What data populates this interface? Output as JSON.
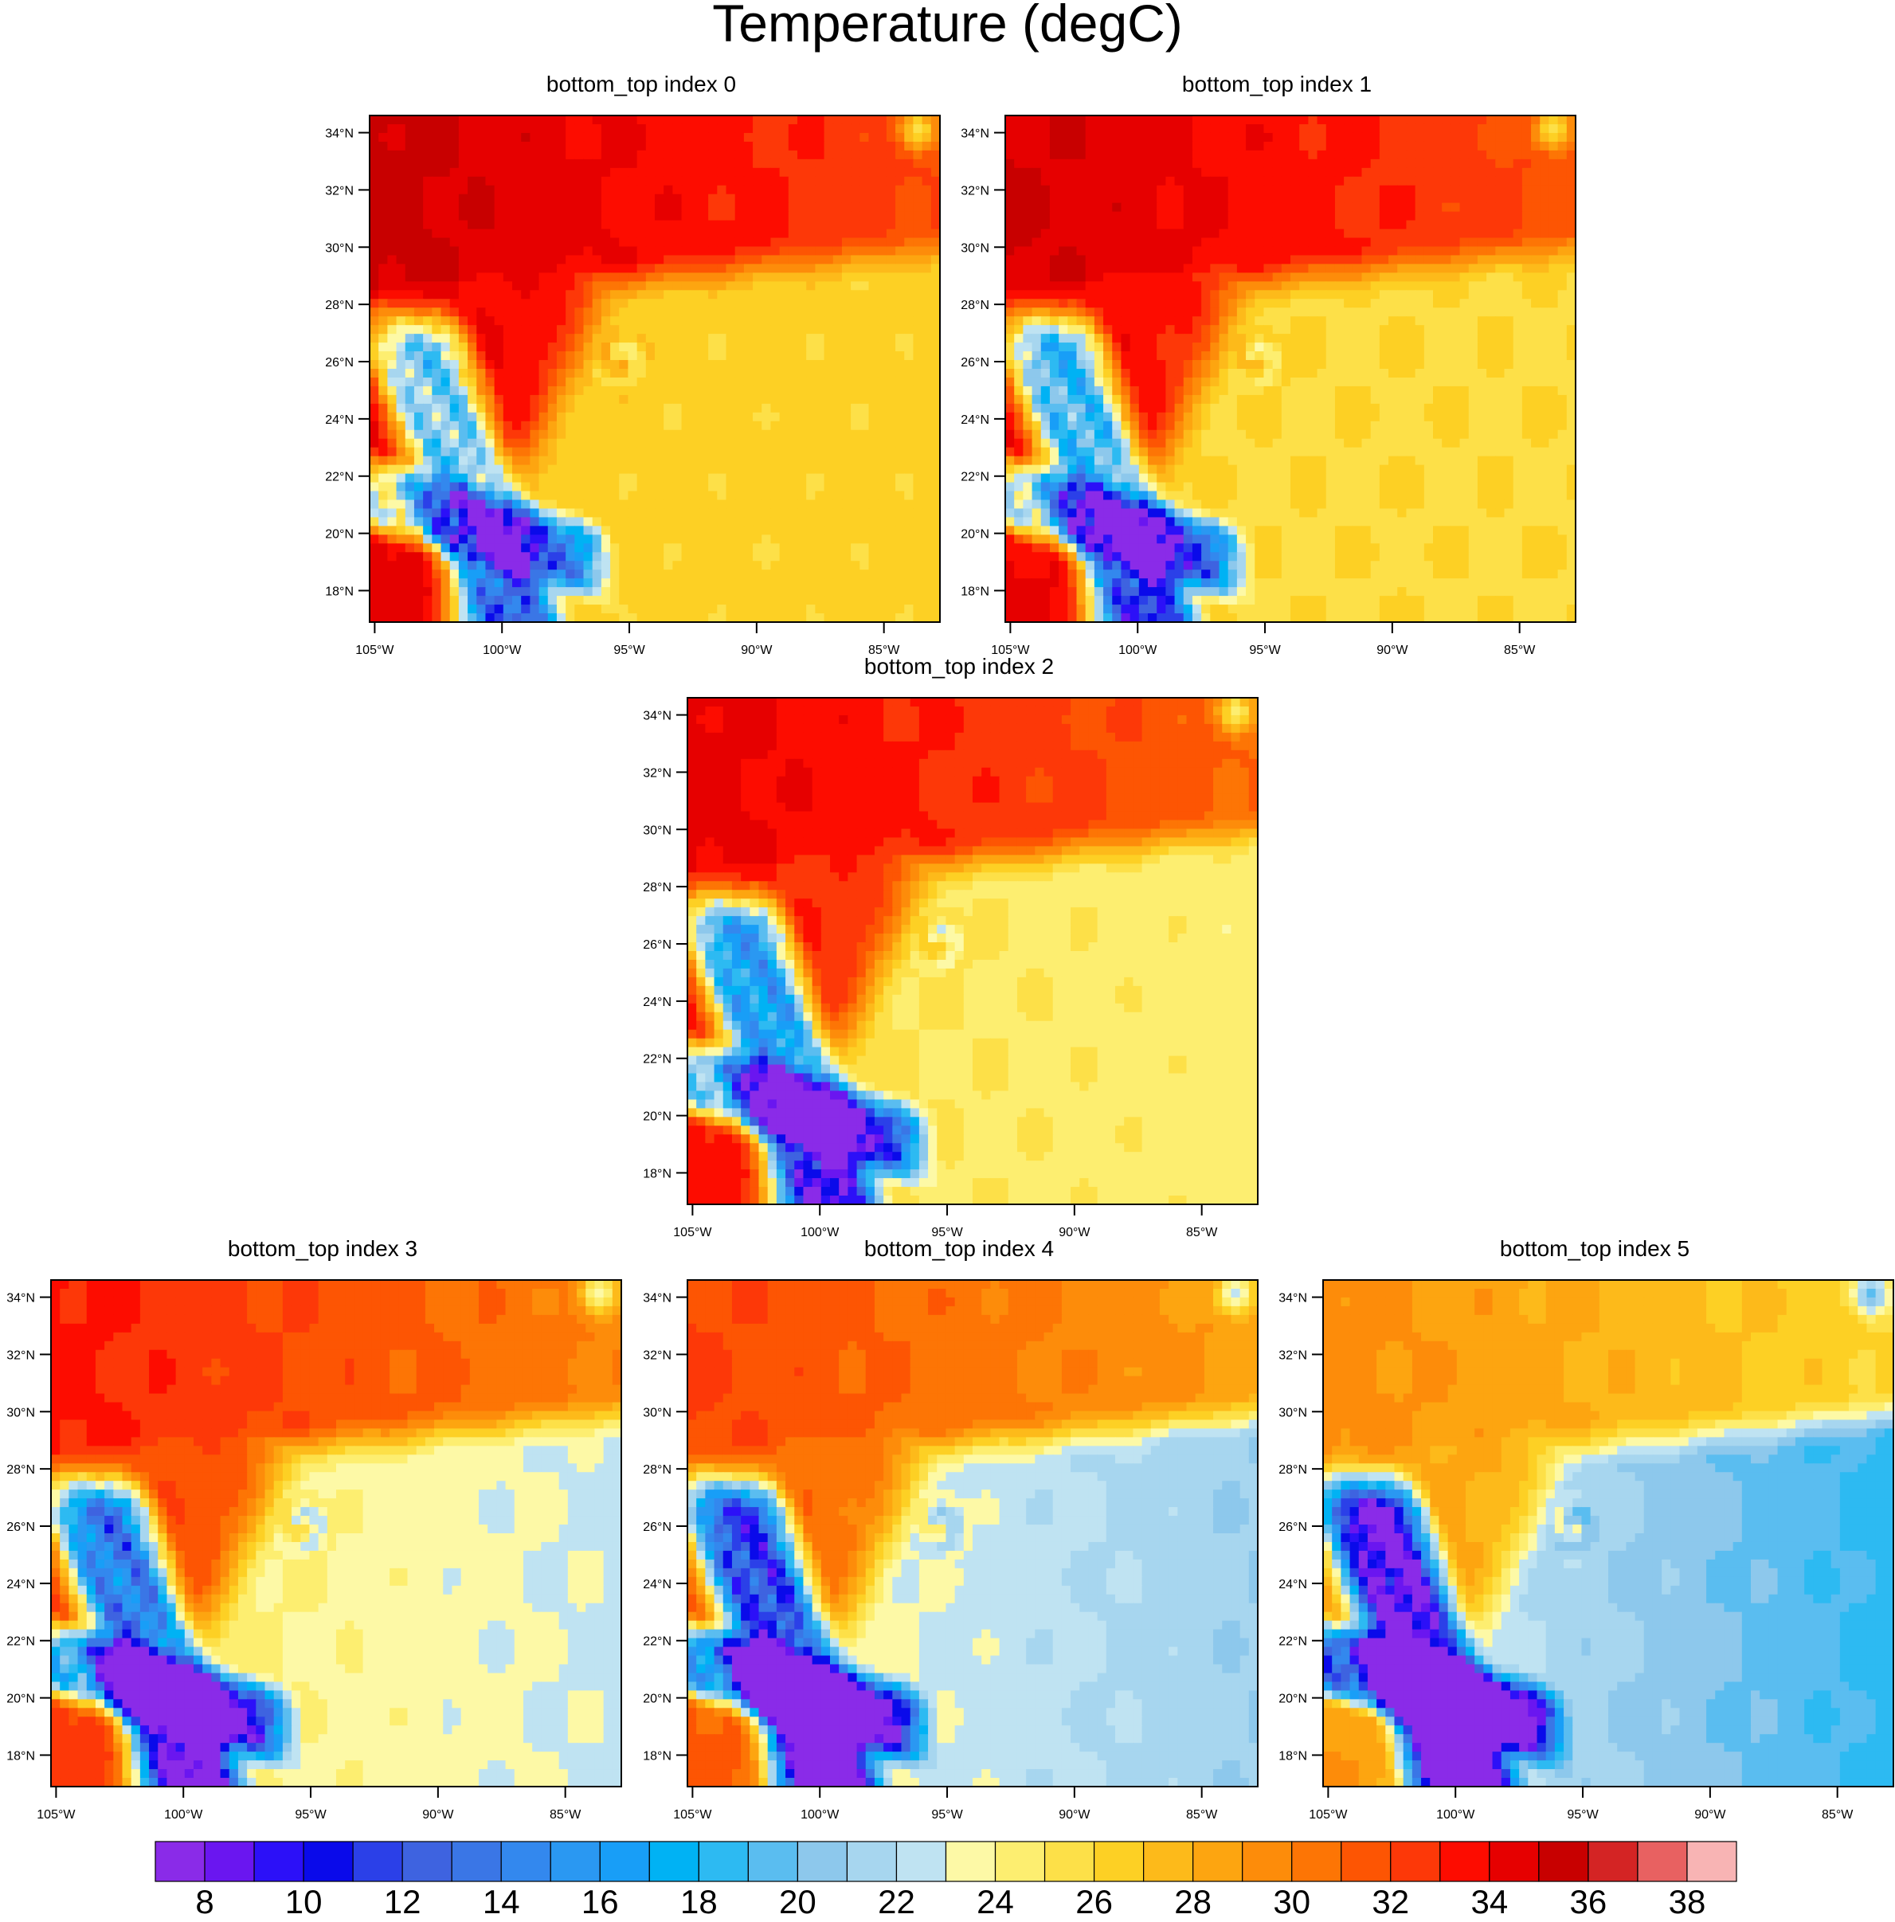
{
  "title": "Temperature (degC)",
  "chart_data": [
    {
      "type": "heatmap",
      "title": "bottom_top index 0",
      "variable": "Temperature",
      "units": "degC",
      "level_index": 0,
      "xlabel": "",
      "ylabel": "",
      "x_ticks": [
        "105°W",
        "100°W",
        "95°W",
        "90°W",
        "85°W"
      ],
      "y_ticks": [
        "18°N",
        "20°N",
        "22°N",
        "24°N",
        "26°N",
        "28°N",
        "30°N",
        "32°N",
        "34°N"
      ],
      "xlim": [
        -105.2,
        -82.8
      ],
      "ylim": [
        16.9,
        34.6
      ],
      "value_range": [
        10,
        36
      ]
    },
    {
      "type": "heatmap",
      "title": "bottom_top index 1",
      "variable": "Temperature",
      "units": "degC",
      "level_index": 1,
      "xlabel": "",
      "ylabel": "",
      "x_ticks": [
        "105°W",
        "100°W",
        "95°W",
        "90°W",
        "85°W"
      ],
      "y_ticks": [
        "18°N",
        "20°N",
        "22°N",
        "24°N",
        "26°N",
        "28°N",
        "30°N",
        "32°N",
        "34°N"
      ],
      "xlim": [
        -105.2,
        -82.8
      ],
      "ylim": [
        16.9,
        34.6
      ],
      "value_range": [
        10,
        36
      ]
    },
    {
      "type": "heatmap",
      "title": "bottom_top index 2",
      "variable": "Temperature",
      "units": "degC",
      "level_index": 2,
      "xlabel": "",
      "ylabel": "",
      "x_ticks": [
        "105°W",
        "100°W",
        "95°W",
        "90°W",
        "85°W"
      ],
      "y_ticks": [
        "18°N",
        "20°N",
        "22°N",
        "24°N",
        "26°N",
        "28°N",
        "30°N",
        "32°N",
        "34°N"
      ],
      "xlim": [
        -105.2,
        -82.8
      ],
      "ylim": [
        16.9,
        34.6
      ],
      "value_range": [
        10,
        35
      ]
    },
    {
      "type": "heatmap",
      "title": "bottom_top index 3",
      "variable": "Temperature",
      "units": "degC",
      "level_index": 3,
      "xlabel": "",
      "ylabel": "",
      "x_ticks": [
        "105°W",
        "100°W",
        "95°W",
        "90°W",
        "85°W"
      ],
      "y_ticks": [
        "18°N",
        "20°N",
        "22°N",
        "24°N",
        "26°N",
        "28°N",
        "30°N",
        "32°N",
        "34°N"
      ],
      "xlim": [
        -105.2,
        -82.8
      ],
      "ylim": [
        16.9,
        34.6
      ],
      "value_range": [
        10,
        34
      ]
    },
    {
      "type": "heatmap",
      "title": "bottom_top index 4",
      "variable": "Temperature",
      "units": "degC",
      "level_index": 4,
      "xlabel": "",
      "ylabel": "",
      "x_ticks": [
        "105°W",
        "100°W",
        "95°W",
        "90°W",
        "85°W"
      ],
      "y_ticks": [
        "18°N",
        "20°N",
        "22°N",
        "24°N",
        "26°N",
        "28°N",
        "30°N",
        "32°N",
        "34°N"
      ],
      "xlim": [
        -105.2,
        -82.8
      ],
      "ylim": [
        16.9,
        34.6
      ],
      "value_range": [
        10,
        33
      ]
    },
    {
      "type": "heatmap",
      "title": "bottom_top index 5",
      "variable": "Temperature",
      "units": "degC",
      "level_index": 5,
      "xlabel": "",
      "ylabel": "",
      "x_ticks": [
        "105°W",
        "100°W",
        "95°W",
        "90°W",
        "85°W"
      ],
      "y_ticks": [
        "18°N",
        "20°N",
        "22°N",
        "24°N",
        "26°N",
        "28°N",
        "30°N",
        "32°N",
        "34°N"
      ],
      "xlim": [
        -105.2,
        -82.8
      ],
      "ylim": [
        16.9,
        34.6
      ],
      "value_range": [
        10,
        31
      ]
    }
  ],
  "colorbar": {
    "levels": [
      8,
      9,
      10,
      11,
      12,
      13,
      14,
      15,
      16,
      17,
      18,
      19,
      20,
      21,
      22,
      23,
      24,
      25,
      26,
      27,
      28,
      29,
      30,
      31,
      32,
      33,
      34,
      35,
      36,
      37,
      38
    ],
    "labels": [
      "8",
      "10",
      "12",
      "14",
      "16",
      "18",
      "20",
      "22",
      "24",
      "26",
      "28",
      "30",
      "32",
      "34",
      "36",
      "38"
    ],
    "colors": [
      "#8a2be8",
      "#6a16f0",
      "#2c10f8",
      "#0a0aea",
      "#2b40e8",
      "#3e63e0",
      "#3a76e6",
      "#3388ee",
      "#2a98f2",
      "#189ef7",
      "#00b2f4",
      "#2dbaf2",
      "#5abdf0",
      "#8dc8ec",
      "#a7d6ef",
      "#bfe3f2",
      "#fdf9a6",
      "#fdee70",
      "#fde048",
      "#fdd024",
      "#fdba1a",
      "#fda510",
      "#fd8c0a",
      "#fd7505",
      "#fd5503",
      "#fd3808",
      "#fd0c00",
      "#e60000",
      "#c80000",
      "#d42424",
      "#e86161",
      "#f8b4b4"
    ]
  }
}
